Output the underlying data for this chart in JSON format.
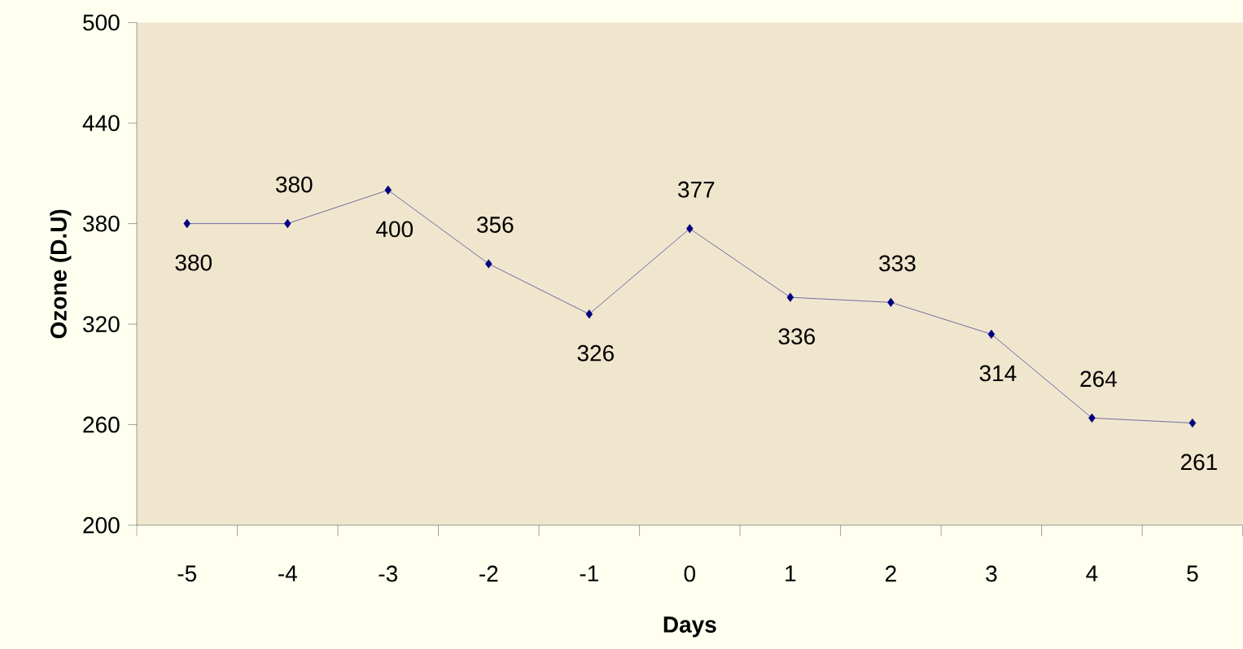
{
  "chart_data": {
    "type": "line",
    "xlabel": "Days",
    "ylabel": "Ozone (D.U)",
    "categories": [
      "-5",
      "-4",
      "-3",
      "-2",
      "-1",
      "0",
      "1",
      "2",
      "3",
      "4",
      "5"
    ],
    "values": [
      380,
      380,
      400,
      356,
      326,
      377,
      336,
      333,
      314,
      264,
      261
    ],
    "color": "#000080",
    "marker": "diamond",
    "line_style": "solid",
    "data_labels": true,
    "ylim": [
      200,
      500
    ],
    "yticks": [
      200,
      260,
      320,
      380,
      440,
      500
    ]
  }
}
